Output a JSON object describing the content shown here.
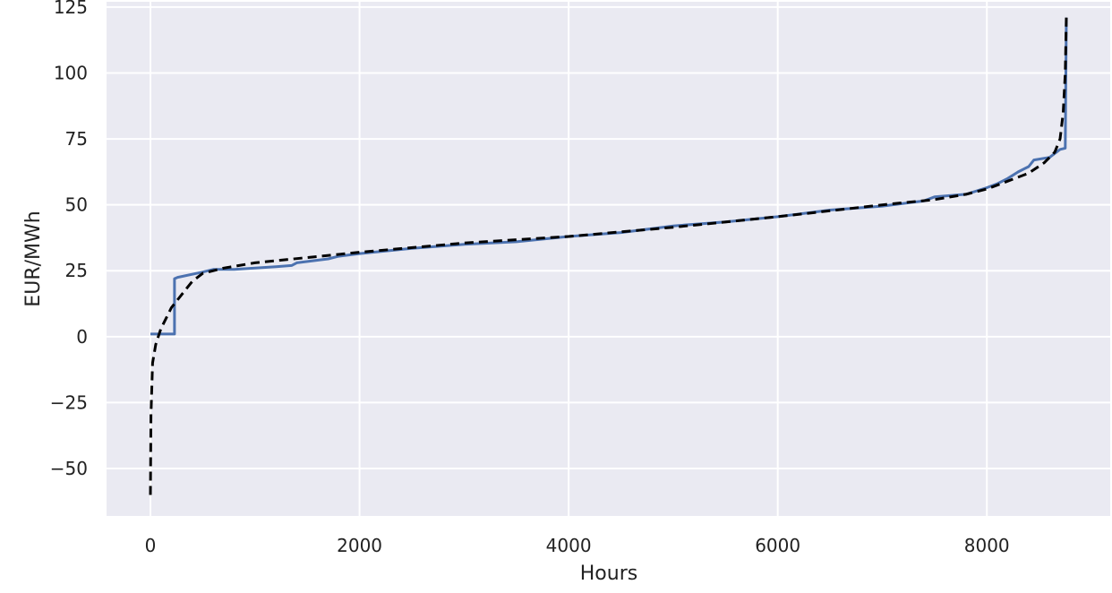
{
  "chart_data": {
    "type": "line",
    "title": "",
    "xlabel": "Hours",
    "ylabel": "EUR/MWh",
    "xlim": [
      -420,
      9180
    ],
    "ylim": [
      -68,
      127
    ],
    "grid": true,
    "x_ticks": [
      0,
      2000,
      4000,
      6000,
      8000
    ],
    "x_tick_labels": [
      "0",
      "2000",
      "4000",
      "6000",
      "8000"
    ],
    "y_ticks": [
      -50,
      -25,
      0,
      25,
      50,
      75,
      100,
      125
    ],
    "y_tick_labels": [
      "−50",
      "−25",
      "0",
      "25",
      "50",
      "75",
      "100",
      "125"
    ],
    "colors": {
      "background": "#eaeaf2",
      "grid": "#ffffff",
      "solid_series": "#4c72b0",
      "dashed_series": "#000000"
    },
    "series": [
      {
        "style": "solid",
        "x": [
          0,
          230,
          230,
          260,
          500,
          600,
          800,
          1000,
          1200,
          1350,
          1400,
          1700,
          1800,
          2000,
          2500,
          3000,
          3500,
          4000,
          4500,
          4900,
          5000,
          5500,
          6000,
          6500,
          7000,
          7400,
          7500,
          7800,
          8000,
          8100,
          8200,
          8300,
          8400,
          8450,
          8600,
          8700,
          8750,
          8760
        ],
        "y": [
          1,
          1,
          22,
          22.5,
          24.5,
          25.5,
          25.5,
          26,
          26.5,
          27,
          28,
          29.5,
          30.5,
          31.5,
          33.5,
          35,
          36,
          38,
          39.5,
          41.5,
          42,
          43.5,
          45.5,
          48,
          49.5,
          51.5,
          53,
          54,
          56.5,
          58,
          60,
          62.5,
          64.5,
          67,
          68,
          71,
          71.5,
          121
        ]
      },
      {
        "style": "dashed",
        "x": [
          0,
          5,
          20,
          50,
          100,
          150,
          200,
          300,
          400,
          500,
          700,
          1000,
          1500,
          2000,
          3000,
          4000,
          5000,
          6000,
          7000,
          7500,
          7800,
          8000,
          8200,
          8400,
          8550,
          8650,
          8700,
          8730,
          8750,
          8760
        ],
        "y": [
          -60,
          -30,
          -10,
          -3,
          3,
          7,
          11,
          16,
          21,
          24,
          26,
          28,
          30,
          32,
          35.5,
          38,
          41.5,
          45.5,
          50,
          52,
          54,
          56,
          59,
          62,
          66,
          70,
          75,
          85,
          100,
          121
        ]
      }
    ]
  }
}
